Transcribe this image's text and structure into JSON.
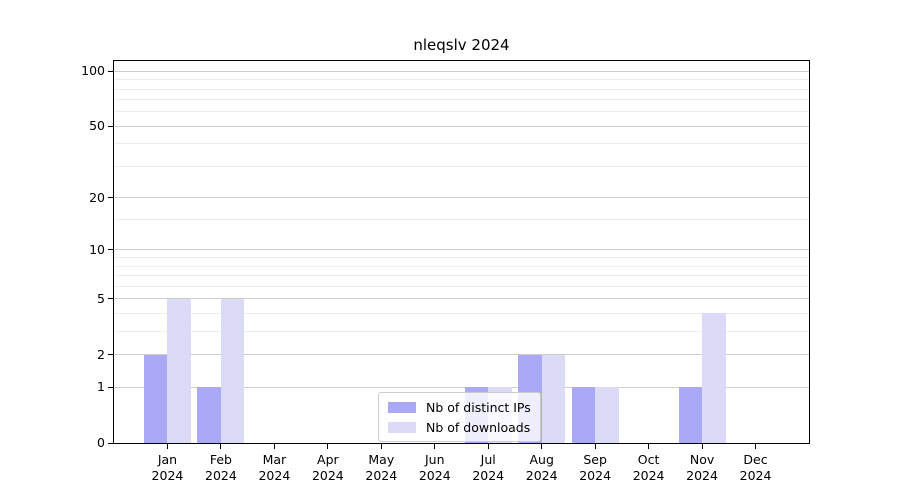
{
  "chart_data": {
    "type": "bar",
    "title": "nleqslv 2024",
    "categories": [
      "Jan",
      "Feb",
      "Mar",
      "Apr",
      "May",
      "Jun",
      "Jul",
      "Aug",
      "Sep",
      "Oct",
      "Nov",
      "Dec"
    ],
    "category_year": "2024",
    "series": [
      {
        "name": "Nb of distinct IPs",
        "color": "#a9a9f5",
        "values": [
          2,
          1,
          0,
          0,
          0,
          0,
          1,
          2,
          1,
          0,
          1,
          0
        ]
      },
      {
        "name": "Nb of downloads",
        "color": "#dbdbf8",
        "values": [
          5,
          5,
          0,
          0,
          0,
          0,
          1,
          2,
          1,
          0,
          4,
          0
        ]
      }
    ],
    "xlabel": "",
    "ylabel": "",
    "yscale": "log10(value+1)",
    "y_major_ticks": [
      0,
      1,
      2,
      5,
      10,
      20,
      50,
      100
    ],
    "y_minor_gridlines": [
      3,
      4,
      6,
      7,
      8,
      9,
      15,
      30,
      40,
      60,
      70,
      80,
      90
    ],
    "ylim": [
      0,
      114
    ],
    "grid": true,
    "legend_position": "lower center"
  },
  "colors": {
    "background": "#ffffff",
    "axis": "#000000",
    "text": "#000000",
    "major_grid": "#cccccc",
    "minor_grid": "#ededed",
    "legend_border": "#cccccc"
  }
}
